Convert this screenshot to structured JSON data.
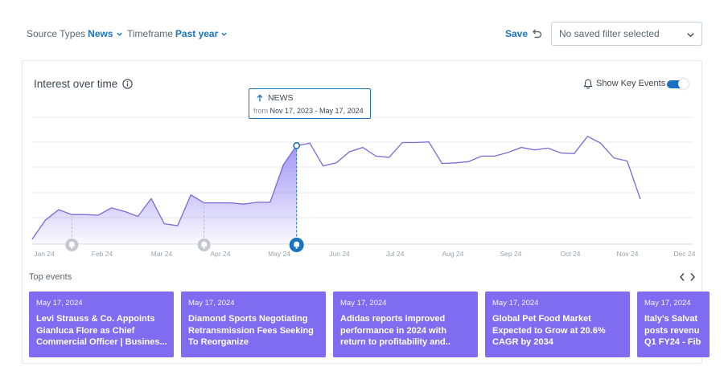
{
  "filters": {
    "source_types": {
      "label": "Source Types",
      "value": "News"
    },
    "timeframe": {
      "label": "Timeframe",
      "value": "Past year"
    }
  },
  "save_label": "Save",
  "saved_filter": {
    "placeholder": "No saved filter selected"
  },
  "card": {
    "title": "Interest over time",
    "show_key_events_label": "Show Key Events",
    "show_key_events_on": true
  },
  "tooltip": {
    "source": "NEWS",
    "from_label": "from",
    "range": "Nov 17, 2023 - May 17, 2024"
  },
  "chart_data": {
    "type": "area",
    "title": "Interest over time",
    "series": [
      {
        "values": [
          8,
          39,
          56,
          48,
          48,
          47,
          59,
          53,
          45,
          74,
          33,
          30,
          80,
          67,
          67,
          67,
          65,
          68,
          68,
          129,
          160,
          164,
          127,
          132,
          150,
          157,
          143,
          141,
          165,
          165,
          166,
          131,
          132,
          134,
          143,
          143,
          149,
          157,
          153,
          156,
          148,
          147,
          175,
          164,
          140,
          135,
          73
        ]
      }
    ],
    "x_tick_labels": [
      "Jan 24",
      "Feb 24",
      "Mar 24",
      "Apr 24",
      "May 24",
      "Jun 24",
      "Jul 24",
      "Aug 24",
      "Sep 24",
      "Oct 24",
      "Nov 24",
      "Dec 24"
    ],
    "ylim": [
      0,
      180
    ],
    "grid": true,
    "key_events_at_points": [
      3,
      13,
      20
    ],
    "highlighted_point": 20,
    "color": "#7f6cf0"
  },
  "top_events": {
    "label": "Top events",
    "items": [
      {
        "date": "May 17, 2024",
        "headline": "Levi Strauss & Co. Appoints Gianluca Flore as Chief Commercial Officer | Busines..."
      },
      {
        "date": "May 17, 2024",
        "headline": "Diamond Sports Negotiating Retransmission Fees Seeking To Reorganize"
      },
      {
        "date": "May 17, 2024",
        "headline": "Adidas reports improved performance in 2024 with return to profitability and.."
      },
      {
        "date": "May 17, 2024",
        "headline": "Global Pet Food Market Expected to Grow at 20.6% CAGR by 2034"
      },
      {
        "date": "May 17, 2024",
        "headline": "Italy's Salvat posts revenu Q1 FY24 - Fib"
      }
    ]
  },
  "colors": {
    "accent": "#1a73c2",
    "event_card": "#7f6cf0",
    "line": "#7a6ad8"
  }
}
